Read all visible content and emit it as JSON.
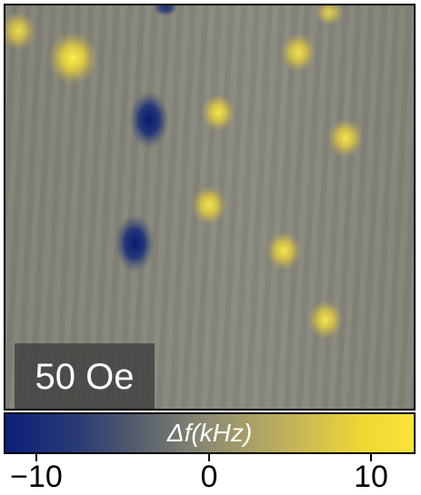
{
  "image": {
    "field_label": "50 Oe",
    "colorbar_label": "Δf(kHz)",
    "colorbar_ticks": [
      "−10",
      "0",
      "10"
    ],
    "colormap_colors": {
      "low": "#0b1f7a",
      "mid": "#8e8c72",
      "high": "#fbe33a"
    },
    "background_color": "#8a8a7e"
  }
}
